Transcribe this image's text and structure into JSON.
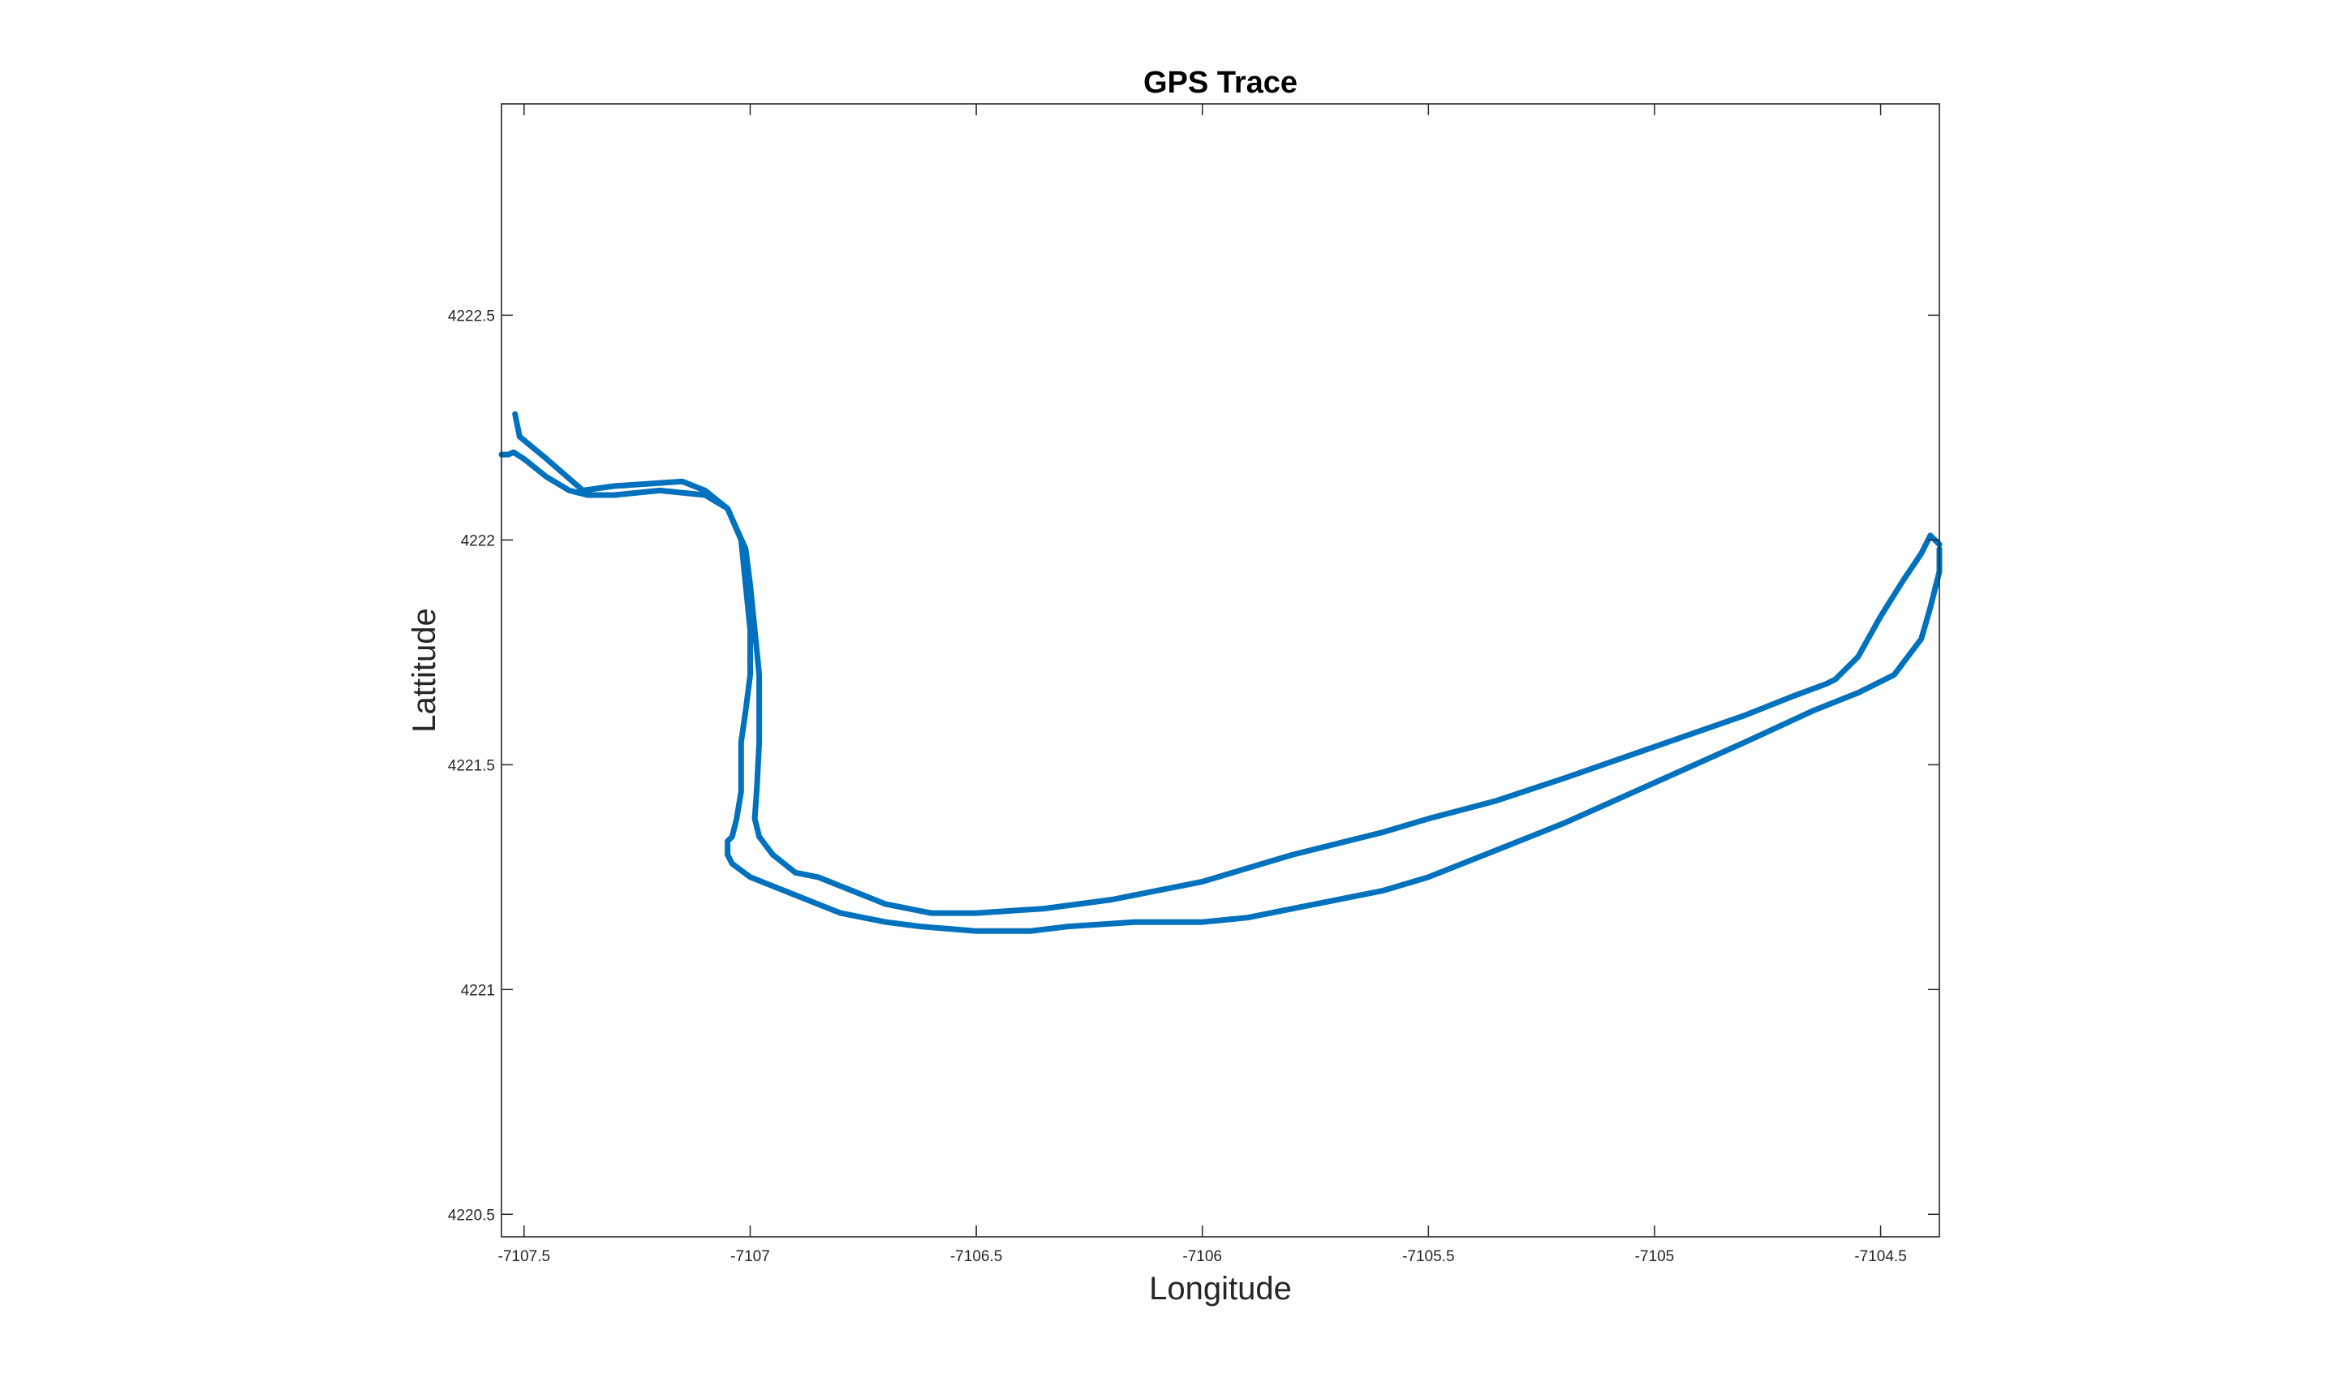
{
  "chart_data": {
    "type": "line",
    "title": "GPS Trace",
    "xlabel": "Longitude",
    "ylabel": "Lattitude",
    "xlim": [
      -7107.55,
      -7104.37
    ],
    "ylim": [
      4220.45,
      4222.97
    ],
    "xticks": [
      -7107.5,
      -7107,
      -7106.5,
      -7106,
      -7105.5,
      -7105,
      -7104.5
    ],
    "xtick_labels": [
      "-7107.5",
      "-7107",
      "-7106.5",
      "-7106",
      "-7105.5",
      "-7105",
      "-7104.5"
    ],
    "yticks": [
      4220.5,
      4221,
      4221.5,
      4222,
      4222.5
    ],
    "ytick_labels": [
      "4220.5",
      "4221",
      "4221.5",
      "4222",
      "4222.5"
    ],
    "grid": false,
    "color": "#0072BD",
    "series": [
      {
        "x": [
          -7107.55,
          -7107.535,
          -7107.523,
          -7107.5,
          -7107.45,
          -7107.4,
          -7107.36,
          -7107.3,
          -7107.2,
          -7107.1,
          -7107.05,
          -7107.02,
          -7107.01,
          -7107.0,
          -7107.0,
          -7107.01,
          -7107.02,
          -7107.02,
          -7107.02,
          -7107.03,
          -7107.04,
          -7107.05,
          -7107.05,
          -7107.04,
          -7107.0,
          -7106.9,
          -7106.8,
          -7106.7,
          -7106.62,
          -7106.5,
          -7106.38,
          -7106.3,
          -7106.15,
          -7106.0,
          -7105.9,
          -7105.8,
          -7105.6,
          -7105.5,
          -7105.35,
          -7105.2,
          -7105.0,
          -7104.8,
          -7104.65,
          -7104.55,
          -7104.47,
          -7104.41,
          -7104.39,
          -7104.37,
          -7104.37
        ],
        "y": [
          4222.19,
          4222.19,
          4222.195,
          4222.18,
          4222.14,
          4222.11,
          4222.1,
          4222.1,
          4222.11,
          4222.1,
          4222.07,
          4222.0,
          4221.9,
          4221.8,
          4221.7,
          4221.62,
          4221.55,
          4221.5,
          4221.44,
          4221.38,
          4221.34,
          4221.33,
          4221.3,
          4221.28,
          4221.25,
          4221.21,
          4221.17,
          4221.15,
          4221.14,
          4221.13,
          4221.13,
          4221.14,
          4221.15,
          4221.15,
          4221.16,
          4221.18,
          4221.22,
          4221.25,
          4221.31,
          4221.37,
          4221.46,
          4221.55,
          4221.62,
          4221.66,
          4221.7,
          4221.78,
          4221.85,
          4221.93,
          4221.98
        ]
      },
      {
        "x": [
          -7104.37,
          -7104.39,
          -7104.41,
          -7104.45,
          -7104.5,
          -7104.55,
          -7104.6,
          -7104.62,
          -7104.7,
          -7104.8,
          -7105.0,
          -7105.2,
          -7105.35,
          -7105.5,
          -7105.6,
          -7105.8,
          -7106.0,
          -7106.2,
          -7106.35,
          -7106.5,
          -7106.6,
          -7106.7,
          -7106.8,
          -7106.85,
          -7106.9,
          -7106.95,
          -7106.98,
          -7106.99,
          -7106.985,
          -7106.98,
          -7106.98,
          -7106.99,
          -7107.0,
          -7107.01,
          -7107.05,
          -7107.1,
          -7107.15,
          -7107.3,
          -7107.37,
          -7107.45,
          -7107.51,
          -7107.52
        ],
        "y": [
          4221.99,
          4222.01,
          4221.97,
          4221.91,
          4221.83,
          4221.74,
          4221.69,
          4221.68,
          4221.65,
          4221.61,
          4221.54,
          4221.47,
          4221.42,
          4221.38,
          4221.35,
          4221.3,
          4221.24,
          4221.2,
          4221.18,
          4221.17,
          4221.17,
          4221.19,
          4221.23,
          4221.25,
          4221.26,
          4221.3,
          4221.34,
          4221.38,
          4221.45,
          4221.55,
          4221.7,
          4221.8,
          4221.9,
          4221.98,
          4222.07,
          4222.11,
          4222.13,
          4222.12,
          4222.11,
          4222.18,
          4222.23,
          4222.28
        ]
      }
    ]
  }
}
